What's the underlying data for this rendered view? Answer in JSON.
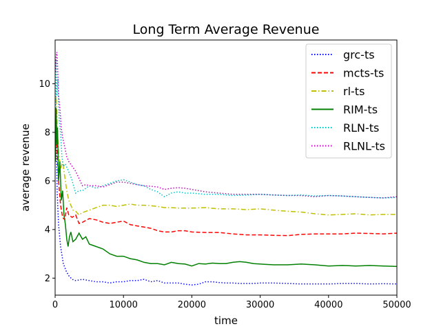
{
  "chart_data": {
    "type": "line",
    "title": "Long Term Average Revenue",
    "xlabel": "time",
    "ylabel": "average revenue",
    "xlim": [
      0,
      50000
    ],
    "ylim": [
      1.3,
      11.8
    ],
    "xticks": [
      0,
      10000,
      20000,
      30000,
      40000,
      50000
    ],
    "yticks": [
      2,
      4,
      6,
      8,
      10
    ],
    "grid": false,
    "legend_position": "top-right",
    "series": [
      {
        "name": "grc-ts",
        "color": "#0000ff",
        "style": "dotted",
        "x": [
          50,
          150,
          300,
          500,
          800,
          1200,
          1600,
          2000,
          2500,
          3000,
          4000,
          5000,
          6000,
          7000,
          8000,
          9000,
          10000,
          11000,
          12000,
          13000,
          14000,
          15000,
          16000,
          17000,
          18000,
          19000,
          20000,
          21000,
          22000,
          23000,
          24000,
          25000,
          26000,
          27000,
          28000,
          29000,
          30000,
          32000,
          34000,
          36000,
          38000,
          40000,
          42000,
          44000,
          46000,
          48000,
          50000
        ],
        "y": [
          6.8,
          8.0,
          5.5,
          4.2,
          3.3,
          2.6,
          2.3,
          2.1,
          1.95,
          1.9,
          1.95,
          1.9,
          1.85,
          1.85,
          1.8,
          1.85,
          1.85,
          1.9,
          1.9,
          1.95,
          1.85,
          1.9,
          1.8,
          1.8,
          1.8,
          1.75,
          1.72,
          1.75,
          1.85,
          1.85,
          1.82,
          1.8,
          1.8,
          1.78,
          1.78,
          1.78,
          1.8,
          1.8,
          1.78,
          1.76,
          1.76,
          1.76,
          1.78,
          1.78,
          1.76,
          1.77,
          1.76
        ]
      },
      {
        "name": "mcts-ts",
        "color": "#ff0000",
        "style": "dashed",
        "x": [
          50,
          150,
          300,
          500,
          800,
          1100,
          1400,
          1700,
          2000,
          2500,
          3000,
          3500,
          4000,
          5000,
          6000,
          7000,
          8000,
          9000,
          10000,
          11000,
          12000,
          13000,
          14000,
          15000,
          16000,
          17000,
          18000,
          19000,
          20000,
          22000,
          24000,
          26000,
          28000,
          30000,
          32000,
          34000,
          36000,
          38000,
          40000,
          42000,
          44000,
          46000,
          48000,
          50000
        ],
        "y": [
          7.0,
          8.8,
          7.2,
          6.0,
          5.0,
          4.5,
          4.4,
          4.9,
          4.6,
          4.5,
          4.6,
          4.25,
          4.3,
          4.45,
          4.4,
          4.3,
          4.25,
          4.3,
          4.35,
          4.2,
          4.15,
          4.1,
          4.05,
          3.95,
          3.9,
          3.9,
          3.95,
          3.95,
          3.9,
          3.88,
          3.88,
          3.82,
          3.78,
          3.78,
          3.76,
          3.75,
          3.8,
          3.82,
          3.82,
          3.82,
          3.85,
          3.84,
          3.82,
          3.85
        ]
      },
      {
        "name": "rl-ts",
        "color": "#bfbf00",
        "style": "dashdot",
        "x": [
          50,
          150,
          300,
          500,
          800,
          1100,
          1400,
          1700,
          2000,
          2300,
          2600,
          3000,
          3500,
          4000,
          5000,
          6000,
          7000,
          8000,
          9000,
          10000,
          11000,
          12000,
          13000,
          14000,
          15000,
          16000,
          17000,
          18000,
          19000,
          20000,
          22000,
          24000,
          26000,
          28000,
          30000,
          32000,
          34000,
          36000,
          38000,
          40000,
          42000,
          44000,
          46000,
          48000,
          50000
        ],
        "y": [
          8.0,
          9.5,
          8.2,
          7.2,
          6.5,
          6.8,
          6.2,
          5.6,
          5.2,
          5.0,
          4.8,
          4.75,
          4.6,
          4.7,
          4.8,
          4.9,
          5.0,
          5.0,
          4.95,
          5.0,
          5.05,
          5.0,
          5.0,
          4.98,
          4.95,
          4.9,
          4.9,
          4.88,
          4.88,
          4.88,
          4.9,
          4.85,
          4.85,
          4.82,
          4.85,
          4.8,
          4.75,
          4.72,
          4.65,
          4.6,
          4.62,
          4.65,
          4.6,
          4.62,
          4.62
        ]
      },
      {
        "name": "RIM-ts",
        "color": "#008000",
        "style": "solid",
        "x": [
          50,
          150,
          250,
          350,
          500,
          700,
          900,
          1100,
          1300,
          1500,
          1700,
          1900,
          2100,
          2300,
          2600,
          3000,
          3500,
          4000,
          4500,
          5000,
          6000,
          7000,
          8000,
          9000,
          10000,
          11000,
          12000,
          13000,
          14000,
          15000,
          16000,
          17000,
          18000,
          19000,
          20000,
          21000,
          22000,
          23000,
          24000,
          25000,
          26000,
          27000,
          28000,
          29000,
          30000,
          32000,
          34000,
          36000,
          38000,
          40000,
          42000,
          44000,
          46000,
          48000,
          50000
        ],
        "y": [
          6.8,
          9.0,
          7.5,
          8.2,
          6.0,
          6.8,
          5.2,
          5.6,
          4.6,
          4.2,
          3.6,
          3.3,
          3.7,
          3.9,
          3.5,
          3.6,
          3.85,
          3.6,
          3.7,
          3.4,
          3.3,
          3.2,
          3.0,
          2.9,
          2.9,
          2.8,
          2.75,
          2.65,
          2.6,
          2.6,
          2.55,
          2.65,
          2.6,
          2.58,
          2.5,
          2.6,
          2.58,
          2.62,
          2.6,
          2.6,
          2.65,
          2.68,
          2.65,
          2.6,
          2.58,
          2.55,
          2.55,
          2.58,
          2.55,
          2.5,
          2.52,
          2.5,
          2.52,
          2.5,
          2.48
        ]
      },
      {
        "name": "RLN-ts",
        "color": "#00bfbf",
        "style": "dotted",
        "x": [
          50,
          150,
          250,
          400,
          600,
          800,
          1000,
          1200,
          1500,
          1800,
          2100,
          2400,
          2700,
          3000,
          3500,
          4000,
          4500,
          5000,
          6000,
          7000,
          8000,
          9000,
          10000,
          11000,
          12000,
          13000,
          14000,
          15000,
          15500,
          16000,
          17000,
          18000,
          19000,
          20000,
          22000,
          24000,
          26000,
          28000,
          30000,
          32000,
          34000,
          36000,
          38000,
          40000,
          42000,
          44000,
          46000,
          48000,
          50000
        ],
        "y": [
          9.0,
          11.0,
          9.5,
          10.2,
          8.5,
          8.0,
          7.0,
          6.6,
          6.7,
          6.5,
          6.3,
          6.1,
          5.8,
          5.5,
          5.6,
          5.6,
          5.7,
          5.8,
          5.7,
          5.8,
          5.9,
          6.0,
          6.05,
          5.95,
          5.85,
          5.8,
          5.65,
          5.55,
          5.45,
          5.35,
          5.5,
          5.55,
          5.5,
          5.5,
          5.45,
          5.45,
          5.4,
          5.42,
          5.45,
          5.42,
          5.4,
          5.42,
          5.38,
          5.4,
          5.38,
          5.35,
          5.32,
          5.3,
          5.32
        ]
      },
      {
        "name": "RLNL-ts",
        "color": "#bf00bf",
        "style": "dotted",
        "x": [
          50,
          150,
          250,
          350,
          500,
          700,
          900,
          1100,
          1400,
          1700,
          2000,
          2500,
          3000,
          3500,
          4000,
          4500,
          5000,
          6000,
          7000,
          8000,
          9000,
          10000,
          11000,
          12000,
          13000,
          14000,
          15000,
          16000,
          17000,
          18000,
          19000,
          20000,
          22000,
          24000,
          26000,
          28000,
          30000,
          32000,
          34000,
          36000,
          38000,
          40000,
          42000,
          44000,
          46000,
          48000,
          50000
        ],
        "y": [
          10.5,
          11.1,
          11.3,
          10.8,
          9.5,
          9.0,
          8.2,
          7.8,
          7.4,
          7.0,
          6.8,
          6.6,
          6.4,
          6.1,
          5.8,
          5.85,
          5.8,
          5.8,
          5.75,
          5.85,
          5.95,
          5.95,
          5.9,
          5.85,
          5.8,
          5.78,
          5.75,
          5.65,
          5.7,
          5.72,
          5.7,
          5.65,
          5.55,
          5.5,
          5.45,
          5.45,
          5.45,
          5.42,
          5.4,
          5.4,
          5.35,
          5.4,
          5.38,
          5.35,
          5.32,
          5.3,
          5.35
        ]
      }
    ]
  }
}
